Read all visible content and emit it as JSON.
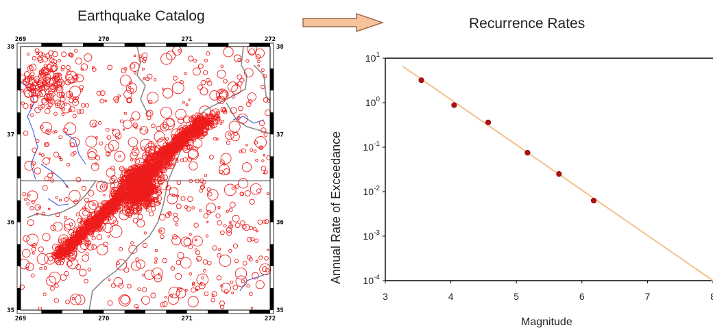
{
  "left_panel": {
    "title": "Earthquake Catalog",
    "x_ticks": [
      "269",
      "270",
      "271",
      "272"
    ],
    "y_ticks": [
      "38",
      "37",
      "36",
      "35"
    ],
    "colors": {
      "events": "#ee1c1c",
      "rivers": "#3a5fd8",
      "borders": "#8a8a8a",
      "frame": "#000000"
    }
  },
  "arrow": {
    "color_fill": "#f7c39b",
    "color_stroke": "#9a6a4a"
  },
  "right_panel": {
    "title": "Recurrence Rates",
    "chart_data": {
      "type": "scatter",
      "title": "Recurrence Rates",
      "xlabel": "Magnitude",
      "ylabel": "Annual Rate of Exceedance",
      "y_scale": "log",
      "xlim": [
        3,
        8
      ],
      "ylim": [
        0.0001,
        10
      ],
      "x_ticks": [
        "3",
        "4",
        "5",
        "6",
        "7",
        "8"
      ],
      "y_ticks": [
        {
          "base": "10",
          "exp": "1"
        },
        {
          "base": "10",
          "exp": "0"
        },
        {
          "base": "10",
          "exp": "-1"
        },
        {
          "base": "10",
          "exp": "-2"
        },
        {
          "base": "10",
          "exp": "-3"
        },
        {
          "base": "10",
          "exp": "-4"
        }
      ],
      "points": [
        {
          "x": 3.55,
          "y": 3.2
        },
        {
          "x": 4.05,
          "y": 0.88
        },
        {
          "x": 4.57,
          "y": 0.36
        },
        {
          "x": 5.17,
          "y": 0.075
        },
        {
          "x": 5.65,
          "y": 0.025
        },
        {
          "x": 6.18,
          "y": 0.0063
        }
      ],
      "fit_line": [
        {
          "x": 3.27,
          "y": 6.5
        },
        {
          "x": 8.0,
          "y": 0.0001
        }
      ],
      "colors": {
        "points": "#b01010",
        "line": "#f4c08c"
      }
    }
  }
}
